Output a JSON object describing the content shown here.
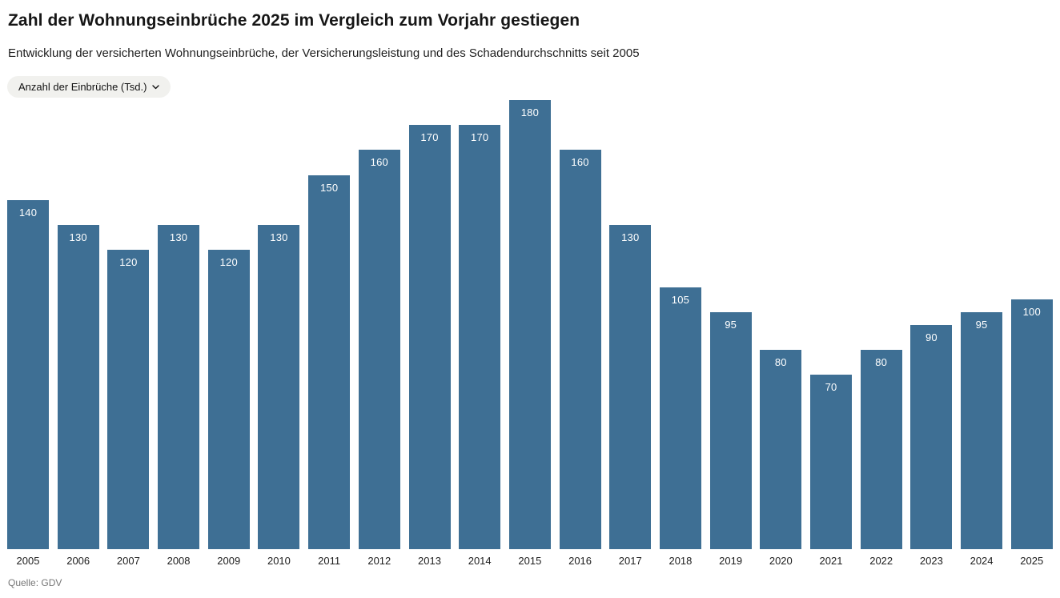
{
  "header": {
    "title": "Zahl der Wohnungseinbrüche 2025 im Vergleich zum Vorjahr gestiegen",
    "subtitle": "Entwicklung der versicherten Wohnungseinbrüche, der Versicherungsleistung und des Schadendurchschnitts seit 2005"
  },
  "controls": {
    "metric_selector": {
      "label": "Anzahl der Einbrüche (Tsd.)",
      "icon": "chevron-down-icon"
    }
  },
  "chart_data": {
    "type": "bar",
    "title": "Zahl der Wohnungseinbrüche 2025 im Vergleich zum Vorjahr gestiegen",
    "subtitle": "Entwicklung der versicherten Wohnungseinbrüche, der Versicherungsleistung und des Schadendurchschnitts seit 2005",
    "selected_metric": "Anzahl der Einbrüche (Tsd.)",
    "categories": [
      "2005",
      "2006",
      "2007",
      "2008",
      "2009",
      "2010",
      "2011",
      "2012",
      "2013",
      "2014",
      "2015",
      "2016",
      "2017",
      "2018",
      "2019",
      "2020",
      "2021",
      "2022",
      "2023",
      "2024",
      "2025"
    ],
    "values": [
      140,
      130,
      120,
      130,
      120,
      130,
      150,
      160,
      170,
      170,
      180,
      160,
      130,
      105,
      95,
      80,
      70,
      80,
      90,
      95,
      100
    ],
    "value_labels_shown": true,
    "xlabel": "",
    "ylabel": "Anzahl der Einbrüche (Tsd.)",
    "ylim": [
      0,
      180
    ],
    "grid": false,
    "legend": "none",
    "bar_color": "#3e6f94",
    "value_label_color": "#ffffff"
  },
  "footer": {
    "source": "Quelle: GDV"
  }
}
